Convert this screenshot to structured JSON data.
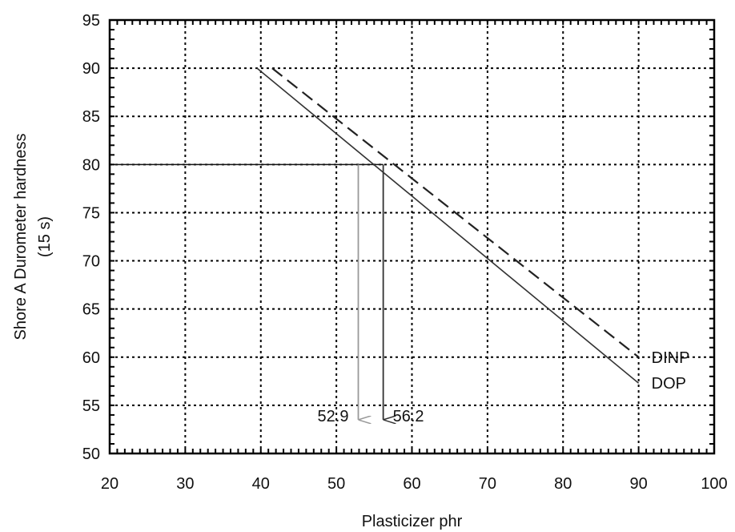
{
  "chart_data": {
    "type": "line",
    "title": "",
    "xlabel": "Plasticizer phr",
    "ylabel": "Shore A Durometer hardness",
    "ylabel_line2": "(15 s)",
    "xlim": [
      20,
      100
    ],
    "ylim": [
      50,
      95
    ],
    "xticks": [
      20,
      30,
      40,
      50,
      60,
      70,
      80,
      90,
      100
    ],
    "yticks": [
      50,
      55,
      60,
      65,
      70,
      75,
      80,
      85,
      90,
      95
    ],
    "grid": true,
    "grid_style": "dotted",
    "series": [
      {
        "name": "DINP",
        "style": "dashed",
        "color": "#222222",
        "x": [
          41.5,
          90
        ],
        "y": [
          90,
          60
        ]
      },
      {
        "name": "DOP",
        "style": "solid",
        "color": "#333333",
        "x": [
          39.5,
          90
        ],
        "y": [
          90,
          57.3
        ]
      }
    ],
    "reference_line": {
      "y": 80,
      "x_from": 20,
      "x_to": 56.2,
      "color": "#111111"
    },
    "arrows": [
      {
        "label": "52.9",
        "x": 52.9,
        "y_from": 80,
        "y_to": 53.5,
        "color": "#999999"
      },
      {
        "label": "56.2",
        "x": 56.2,
        "y_from": 80,
        "y_to": 53.5,
        "color": "#333333"
      }
    ]
  }
}
